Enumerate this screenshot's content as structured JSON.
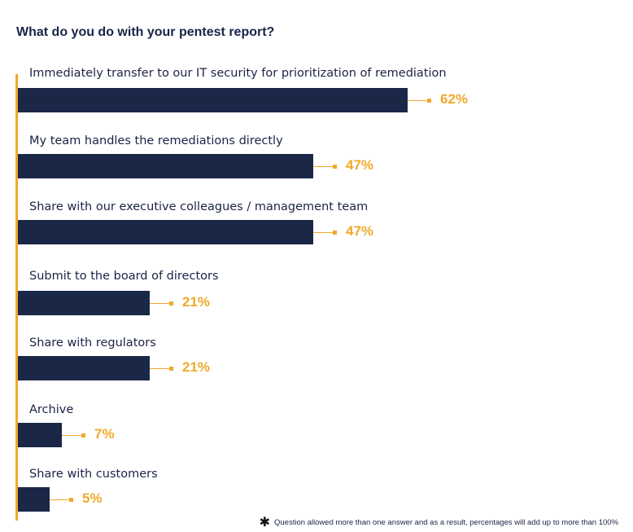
{
  "chart_data": {
    "type": "bar",
    "orientation": "horizontal",
    "title": "What do you do with your pentest report?",
    "categories": [
      "Immediately transfer to our IT security for prioritization of remediation",
      "My team handles the remediations directly",
      "Share with our executive colleagues / management team",
      "Submit to the board of directors",
      "Share with regulators",
      "Archive",
      "Share with customers"
    ],
    "values": [
      62,
      47,
      47,
      21,
      21,
      7,
      5
    ],
    "value_labels": [
      "62%",
      "47%",
      "47%",
      "21%",
      "21%",
      "7%",
      "5%"
    ],
    "unit": "%",
    "xlim": [
      0,
      100
    ],
    "xlabel": "",
    "ylabel": "",
    "footnote": "Question allowed more than one answer and as a result, percentages will add up to more than 100%",
    "footnote_symbol": "✱"
  },
  "colors": {
    "bar": "#1b2747",
    "accent": "#f0a92a",
    "text": "#1b2347"
  }
}
